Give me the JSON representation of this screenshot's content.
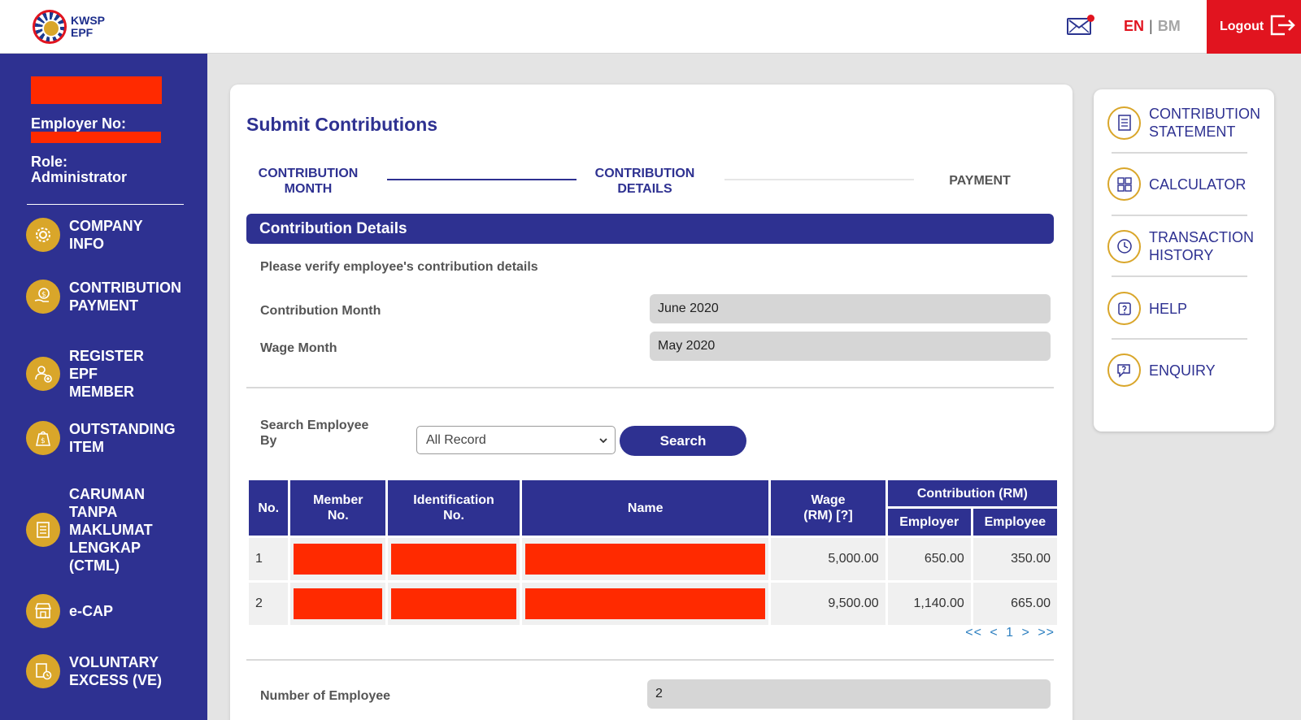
{
  "header": {
    "logo_line1": "KWSP",
    "logo_line2": "EPF",
    "lang_en": "EN",
    "lang_sep": "|",
    "lang_bm": "BM",
    "logout_label": "Logout"
  },
  "sidebar": {
    "employer_no_label": "Employer No:",
    "role_label": "Role:\nAdministrator",
    "items": [
      {
        "label": "COMPANY\nINFO",
        "icon": "gear-icon"
      },
      {
        "label": "CONTRIBUTION\nPAYMENT",
        "icon": "dollar-hand-icon"
      },
      {
        "label": "REGISTER\nEPF\nMEMBER",
        "icon": "add-user-icon"
      },
      {
        "label": "OUTSTANDING\nITEM",
        "icon": "money-bag-icon"
      },
      {
        "label": "CARUMAN\nTANPA\nMAKLUMAT\nLENGKAP\n(CTML)",
        "icon": "document-icon"
      },
      {
        "label": "e-CAP",
        "icon": "store-icon"
      },
      {
        "label": "VOLUNTARY\nEXCESS (VE)",
        "icon": "clock-document-icon"
      }
    ]
  },
  "main": {
    "title": "Submit Contributions",
    "steps": [
      "CONTRIBUTION\nMONTH",
      "CONTRIBUTION\nDETAILS",
      "PAYMENT"
    ],
    "section_title": "Contribution Details",
    "verify_text": "Please verify employee's contribution details",
    "contribution_month_label": "Contribution Month",
    "contribution_month_value": "June 2020",
    "wage_month_label": "Wage Month",
    "wage_month_value": "May 2020",
    "search_label": "Search Employee\nBy",
    "search_select_value": "All Record",
    "search_button": "Search",
    "table": {
      "headers": {
        "no": "No.",
        "member_no": "Member\nNo.",
        "identification_no": "Identification\nNo.",
        "name": "Name",
        "wage": "Wage\n(RM) [?]",
        "contribution": "Contribution (RM)",
        "employer": "Employer",
        "employee": "Employee"
      },
      "rows": [
        {
          "no": "1",
          "wage": "5,000.00",
          "employer": "650.00",
          "employee": "350.00"
        },
        {
          "no": "2",
          "wage": "9,500.00",
          "employer": "1,140.00",
          "employee": "665.00"
        }
      ]
    },
    "pager": {
      "first": "<<",
      "prev": "<",
      "current": "1",
      "next": ">",
      "last": ">>"
    },
    "number_of_employee_label": "Number of Employee",
    "number_of_employee_value": "2"
  },
  "right_panel": {
    "items": [
      {
        "label": "CONTRIBUTION\nSTATEMENT",
        "icon": "statement-icon"
      },
      {
        "label": "CALCULATOR",
        "icon": "calculator-icon"
      },
      {
        "label": "TRANSACTION\nHISTORY",
        "icon": "history-icon"
      },
      {
        "label": "HELP",
        "icon": "help-icon"
      },
      {
        "label": "ENQUIRY",
        "icon": "enquiry-icon"
      }
    ]
  },
  "colors": {
    "primary": "#2e3191",
    "accent_red": "#e1141f",
    "gold": "#d9a62a",
    "redaction": "#ff2a00"
  }
}
